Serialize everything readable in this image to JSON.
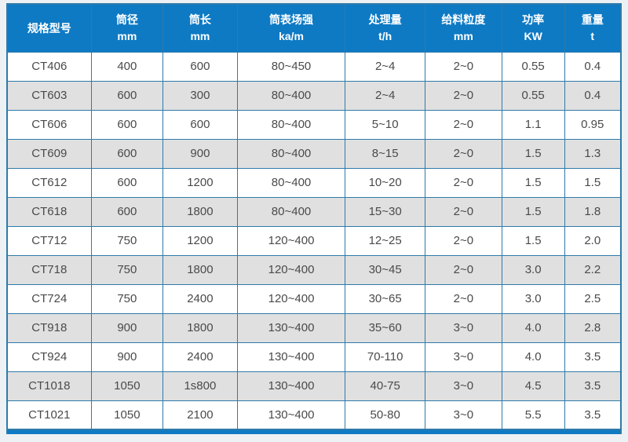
{
  "table": {
    "columns": [
      {
        "title": "规格型号",
        "unit": ""
      },
      {
        "title": "筒径",
        "unit": "mm"
      },
      {
        "title": "筒长",
        "unit": "mm"
      },
      {
        "title": "筒表场强",
        "unit": "ka/m"
      },
      {
        "title": "处理量",
        "unit": "t/h"
      },
      {
        "title": "给料粒度",
        "unit": "mm"
      },
      {
        "title": "功率",
        "unit": "KW"
      },
      {
        "title": "重量",
        "unit": "t"
      }
    ],
    "rows": [
      [
        "CT406",
        "400",
        "600",
        "80~450",
        "2~4",
        "2~0",
        "0.55",
        "0.4"
      ],
      [
        "CT603",
        "600",
        "300",
        "80~400",
        "2~4",
        "2~0",
        "0.55",
        "0.4"
      ],
      [
        "CT606",
        "600",
        "600",
        "80~400",
        "5~10",
        "2~0",
        "1.1",
        "0.95"
      ],
      [
        "CT609",
        "600",
        "900",
        "80~400",
        "8~15",
        "2~0",
        "1.5",
        "1.3"
      ],
      [
        "CT612",
        "600",
        "1200",
        "80~400",
        "10~20",
        "2~0",
        "1.5",
        "1.5"
      ],
      [
        "CT618",
        "600",
        "1800",
        "80~400",
        "15~30",
        "2~0",
        "1.5",
        "1.8"
      ],
      [
        "CT712",
        "750",
        "1200",
        "120~400",
        "12~25",
        "2~0",
        "1.5",
        "2.0"
      ],
      [
        "CT718",
        "750",
        "1800",
        "120~400",
        "30~45",
        "2~0",
        "3.0",
        "2.2"
      ],
      [
        "CT724",
        "750",
        "2400",
        "120~400",
        "30~65",
        "2~0",
        "3.0",
        "2.5"
      ],
      [
        "CT918",
        "900",
        "1800",
        "130~400",
        "35~60",
        "3~0",
        "4.0",
        "2.8"
      ],
      [
        "CT924",
        "900",
        "2400",
        "130~400",
        "70-110",
        "3~0",
        "4.0",
        "3.5"
      ],
      [
        "CT1018",
        "1050",
        "1s800",
        "130~400",
        "40-75",
        "3~0",
        "4.5",
        "3.5"
      ],
      [
        "CT1021",
        "1050",
        "2100",
        "130~400",
        "50-80",
        "3~0",
        "5.5",
        "3.5"
      ]
    ],
    "colors": {
      "header_bg": "#0e7ac4",
      "border": "#2f7aa9",
      "row_alt_bg": "#e0e0e0",
      "page_bg": "#edf1f4",
      "text": "#4a4a4a",
      "header_text": "#ffffff"
    }
  }
}
